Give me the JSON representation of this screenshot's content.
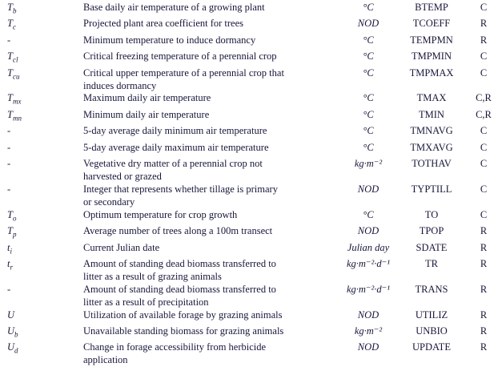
{
  "page": {
    "background_color": "#ffffff",
    "text_color": "#17173a"
  },
  "table": {
    "rows": [
      {
        "symbol": {
          "base": "T",
          "sub": "b"
        },
        "description": "Base daily air temperature of a growing plant",
        "units": "°C",
        "code": "BTEMP",
        "flag": "C"
      },
      {
        "symbol": {
          "base": "T",
          "sub": "c"
        },
        "description": "Projected plant area coefficient for trees",
        "units": "NOD",
        "code": "TCOEFF",
        "flag": "R"
      },
      {
        "symbol": {
          "base": "-",
          "sub": ""
        },
        "description": "Minimum temperature to induce dormancy",
        "units": "°C",
        "code": "TEMPMN",
        "flag": "R"
      },
      {
        "symbol": {
          "base": "T",
          "sub": "cl"
        },
        "description": "Critical freezing temperature of a perennial crop",
        "units": "°C",
        "code": "TMPMIN",
        "flag": "C"
      },
      {
        "symbol": {
          "base": "T",
          "sub": "cu"
        },
        "description": "Critical upper temperature of a perennial crop that\ninduces dormancy",
        "units": "°C",
        "code": "TMPMAX",
        "flag": "C"
      },
      {
        "symbol": {
          "base": "T",
          "sub": "mx"
        },
        "description": "Maximum daily air temperature",
        "units": "°C",
        "code": "TMAX",
        "flag": "C,R"
      },
      {
        "symbol": {
          "base": "T",
          "sub": "mn"
        },
        "description": "Minimum daily air temperature",
        "units": "°C",
        "code": "TMIN",
        "flag": "C,R"
      },
      {
        "symbol": {
          "base": "-",
          "sub": ""
        },
        "description": "5-day average daily minimum air temperature",
        "units": "°C",
        "code": "TMNAVG",
        "flag": "C"
      },
      {
        "symbol": {
          "base": "-",
          "sub": ""
        },
        "description": "5-day average daily maximum air temperature",
        "units": "°C",
        "code": "TMXAVG",
        "flag": "C"
      },
      {
        "symbol": {
          "base": "-",
          "sub": ""
        },
        "description": "Vegetative dry matter of a perennial crop not\nharvested or grazed",
        "units": "kg·m⁻²",
        "code": "TOTHAV",
        "flag": "C"
      },
      {
        "symbol": {
          "base": "-",
          "sub": ""
        },
        "description": "Integer that represents whether tillage is primary\nor secondary",
        "units": "NOD",
        "code": "TYPTILL",
        "flag": "C"
      },
      {
        "symbol": {
          "base": "T",
          "sub": "o"
        },
        "description": "Optimum temperature for crop growth",
        "units": "°C",
        "code": "TO",
        "flag": "C"
      },
      {
        "symbol": {
          "base": "T",
          "sub": "p"
        },
        "description": "Average number of trees along a 100m transect",
        "units": "NOD",
        "code": "TPOP",
        "flag": "R"
      },
      {
        "symbol": {
          "base": "t",
          "sub": "i"
        },
        "description": "Current Julian date",
        "units": "Julian day",
        "code": "SDATE",
        "flag": "R"
      },
      {
        "symbol": {
          "base": "t",
          "sub": "r"
        },
        "description": "Amount of standing dead biomass transferred to\nlitter as a result of grazing animals",
        "units": "kg·m⁻²·d⁻¹",
        "code": "TR",
        "flag": "R"
      },
      {
        "symbol": {
          "base": "-",
          "sub": ""
        },
        "description": "Amount of standing dead biomass transferred to\nlitter as a result of precipitation",
        "units": "kg·m⁻²·d⁻¹",
        "code": "TRANS",
        "flag": "R"
      },
      {
        "symbol": {
          "base": "U",
          "sub": ""
        },
        "description": "Utilization of available forage by grazing animals",
        "units": "NOD",
        "code": "UTILIZ",
        "flag": "R"
      },
      {
        "symbol": {
          "base": "U",
          "sub": "b"
        },
        "description": "Unavailable standing biomass for grazing animals",
        "units": "kg·m⁻²",
        "code": "UNBIO",
        "flag": "R"
      },
      {
        "symbol": {
          "base": "U",
          "sub": "d"
        },
        "description": "Change in forage accessibility from herbicide\napplication",
        "units": "NOD",
        "code": "UPDATE",
        "flag": "R"
      }
    ]
  }
}
